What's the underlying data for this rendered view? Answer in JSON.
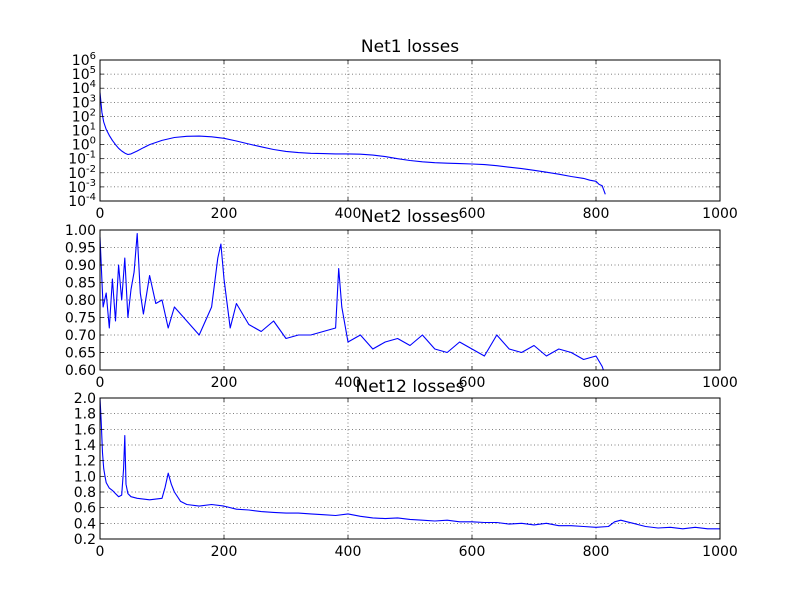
{
  "colors": {
    "series": "#0000ff",
    "axes": "#000000",
    "background": "#ffffff"
  },
  "chart_data": [
    {
      "type": "line",
      "title": "Net1 losses",
      "xlabel": "",
      "ylabel": "",
      "xlim": [
        0,
        1000
      ],
      "ylim": [
        0.0001,
        1000000
      ],
      "yscale": "log",
      "grid": true,
      "xticks": [
        0,
        200,
        400,
        600,
        800,
        1000
      ],
      "yticks": [
        {
          "value": 0.0001,
          "base": "10",
          "exp": "-4"
        },
        {
          "value": 0.001,
          "base": "10",
          "exp": "-3"
        },
        {
          "value": 0.01,
          "base": "10",
          "exp": "-2"
        },
        {
          "value": 0.1,
          "base": "10",
          "exp": "-1"
        },
        {
          "value": 1,
          "base": "10",
          "exp": "0"
        },
        {
          "value": 10,
          "base": "10",
          "exp": "1"
        },
        {
          "value": 100,
          "base": "10",
          "exp": "2"
        },
        {
          "value": 1000,
          "base": "10",
          "exp": "3"
        },
        {
          "value": 10000,
          "base": "10",
          "exp": "4"
        },
        {
          "value": 100000,
          "base": "10",
          "exp": "5"
        },
        {
          "value": 1000000,
          "base": "10",
          "exp": "6"
        }
      ],
      "series": [
        {
          "x": [
            0,
            3,
            6,
            10,
            15,
            20,
            25,
            30,
            35,
            40,
            45,
            50,
            60,
            70,
            80,
            100,
            120,
            140,
            160,
            180,
            200,
            220,
            240,
            260,
            280,
            300,
            320,
            340,
            360,
            380,
            400,
            420,
            440,
            460,
            480,
            500,
            520,
            540,
            560,
            580,
            600,
            620,
            640,
            660,
            680,
            700,
            720,
            740,
            760,
            780,
            790,
            800,
            805,
            810,
            812,
            815
          ],
          "y": [
            5000,
            200,
            40,
            12,
            4.5,
            2,
            1,
            0.55,
            0.35,
            0.25,
            0.2,
            0.22,
            0.35,
            0.6,
            1.0,
            2.0,
            3.2,
            3.9,
            4.0,
            3.6,
            2.8,
            1.8,
            1.1,
            0.7,
            0.45,
            0.33,
            0.27,
            0.24,
            0.23,
            0.22,
            0.22,
            0.21,
            0.18,
            0.14,
            0.1,
            0.075,
            0.06,
            0.052,
            0.048,
            0.045,
            0.042,
            0.038,
            0.032,
            0.025,
            0.02,
            0.015,
            0.011,
            0.008,
            0.0055,
            0.004,
            0.003,
            0.0025,
            0.0015,
            0.0012,
            0.0007,
            0.0003
          ]
        }
      ]
    },
    {
      "type": "line",
      "title": "Net2 losses",
      "xlabel": "",
      "ylabel": "",
      "xlim": [
        0,
        1000
      ],
      "ylim": [
        0.6,
        1.0
      ],
      "grid": true,
      "xticks": [
        0,
        200,
        400,
        600,
        800,
        1000
      ],
      "yticks": [
        {
          "value": 0.6,
          "label": "0.60"
        },
        {
          "value": 0.65,
          "label": "0.65"
        },
        {
          "value": 0.7,
          "label": "0.70"
        },
        {
          "value": 0.75,
          "label": "0.75"
        },
        {
          "value": 0.8,
          "label": "0.80"
        },
        {
          "value": 0.85,
          "label": "0.85"
        },
        {
          "value": 0.9,
          "label": "0.90"
        },
        {
          "value": 0.95,
          "label": "0.95"
        },
        {
          "value": 1.0,
          "label": "1.00"
        }
      ],
      "series": [
        {
          "x": [
            0,
            5,
            10,
            15,
            20,
            25,
            30,
            35,
            40,
            45,
            50,
            55,
            60,
            65,
            70,
            80,
            90,
            100,
            110,
            120,
            140,
            160,
            180,
            190,
            195,
            200,
            210,
            220,
            240,
            260,
            280,
            300,
            320,
            340,
            380,
            385,
            390,
            400,
            420,
            440,
            460,
            480,
            500,
            520,
            540,
            560,
            580,
            600,
            620,
            640,
            660,
            680,
            700,
            720,
            740,
            760,
            780,
            800,
            810,
            812
          ],
          "y": [
            0.98,
            0.78,
            0.82,
            0.72,
            0.86,
            0.74,
            0.9,
            0.8,
            0.92,
            0.75,
            0.83,
            0.88,
            0.99,
            0.82,
            0.76,
            0.87,
            0.79,
            0.8,
            0.72,
            0.78,
            0.74,
            0.7,
            0.78,
            0.92,
            0.96,
            0.86,
            0.72,
            0.79,
            0.73,
            0.71,
            0.74,
            0.69,
            0.7,
            0.7,
            0.72,
            0.89,
            0.78,
            0.68,
            0.7,
            0.66,
            0.68,
            0.69,
            0.67,
            0.7,
            0.66,
            0.65,
            0.68,
            0.66,
            0.64,
            0.7,
            0.66,
            0.65,
            0.67,
            0.64,
            0.66,
            0.65,
            0.63,
            0.64,
            0.61,
            0.6
          ]
        }
      ]
    },
    {
      "type": "line",
      "title": "Net12 losses",
      "xlabel": "",
      "ylabel": "",
      "xlim": [
        0,
        1000
      ],
      "ylim": [
        0.2,
        2.0
      ],
      "grid": true,
      "xticks": [
        0,
        200,
        400,
        600,
        800,
        1000
      ],
      "yticks": [
        {
          "value": 0.2,
          "label": "0.2"
        },
        {
          "value": 0.4,
          "label": "0.4"
        },
        {
          "value": 0.6,
          "label": "0.6"
        },
        {
          "value": 0.8,
          "label": "0.8"
        },
        {
          "value": 1.0,
          "label": "1.0"
        },
        {
          "value": 1.2,
          "label": "1.2"
        },
        {
          "value": 1.4,
          "label": "1.4"
        },
        {
          "value": 1.6,
          "label": "1.6"
        },
        {
          "value": 1.8,
          "label": "1.8"
        },
        {
          "value": 2.0,
          "label": "2.0"
        }
      ],
      "series": [
        {
          "x": [
            0,
            2,
            4,
            6,
            8,
            10,
            15,
            20,
            25,
            30,
            35,
            38,
            40,
            42,
            45,
            50,
            60,
            80,
            100,
            105,
            110,
            115,
            120,
            130,
            140,
            160,
            180,
            200,
            220,
            240,
            260,
            280,
            300,
            320,
            340,
            360,
            380,
            400,
            420,
            440,
            460,
            480,
            500,
            520,
            540,
            560,
            580,
            600,
            620,
            640,
            660,
            680,
            700,
            720,
            740,
            760,
            780,
            800,
            820,
            830,
            840,
            850,
            860,
            880,
            900,
            920,
            940,
            960,
            980,
            1000
          ],
          "y": [
            2.0,
            1.7,
            1.3,
            1.1,
            1.0,
            0.92,
            0.85,
            0.82,
            0.78,
            0.74,
            0.76,
            1.1,
            1.52,
            0.9,
            0.78,
            0.74,
            0.72,
            0.7,
            0.72,
            0.86,
            1.04,
            0.9,
            0.8,
            0.68,
            0.64,
            0.62,
            0.64,
            0.62,
            0.58,
            0.57,
            0.55,
            0.54,
            0.53,
            0.53,
            0.52,
            0.51,
            0.5,
            0.52,
            0.49,
            0.47,
            0.46,
            0.47,
            0.45,
            0.44,
            0.43,
            0.44,
            0.42,
            0.42,
            0.41,
            0.41,
            0.39,
            0.4,
            0.38,
            0.4,
            0.37,
            0.37,
            0.36,
            0.35,
            0.36,
            0.42,
            0.44,
            0.42,
            0.4,
            0.36,
            0.34,
            0.35,
            0.33,
            0.35,
            0.33,
            0.33
          ]
        }
      ]
    }
  ]
}
